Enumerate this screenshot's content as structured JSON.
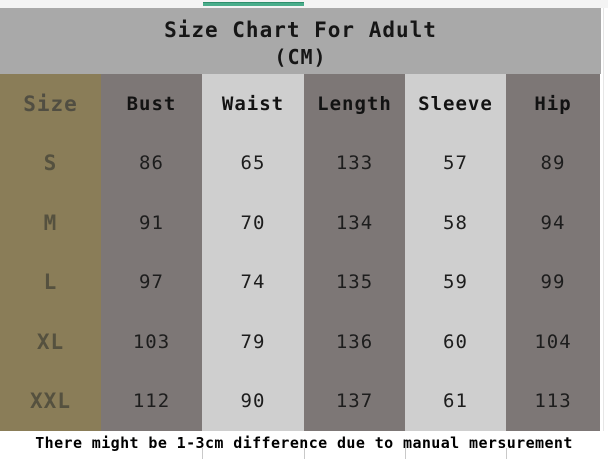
{
  "ui": {
    "title_line1": "Size Chart For Adult",
    "title_line2": "(CM)",
    "footer_note": "There might be 1-3cm difference due to manual mersurement",
    "colors": {
      "title_bar": "#a9a9a9",
      "size_column": "#8a7d58",
      "dark_column": "#7d7776",
      "light_column": "#cfcfcf",
      "accent_green_line": "#4aad8b",
      "size_text": "#55513f",
      "data_text": "#1d1d1d"
    }
  },
  "chart_data": {
    "type": "table",
    "title": "Size Chart For Adult (CM)",
    "unit": "CM",
    "columns": [
      "Size",
      "Bust",
      "Waist",
      "Length",
      "Sleeve",
      "Hip"
    ],
    "rows": [
      [
        "S",
        86,
        65,
        133,
        57,
        89
      ],
      [
        "M",
        91,
        70,
        134,
        58,
        94
      ],
      [
        "L",
        97,
        74,
        135,
        59,
        99
      ],
      [
        "XL",
        103,
        79,
        136,
        60,
        104
      ],
      [
        "XXL",
        112,
        90,
        137,
        61,
        113
      ]
    ],
    "footnote": "There might be 1-3cm difference due to manual mersurement"
  }
}
